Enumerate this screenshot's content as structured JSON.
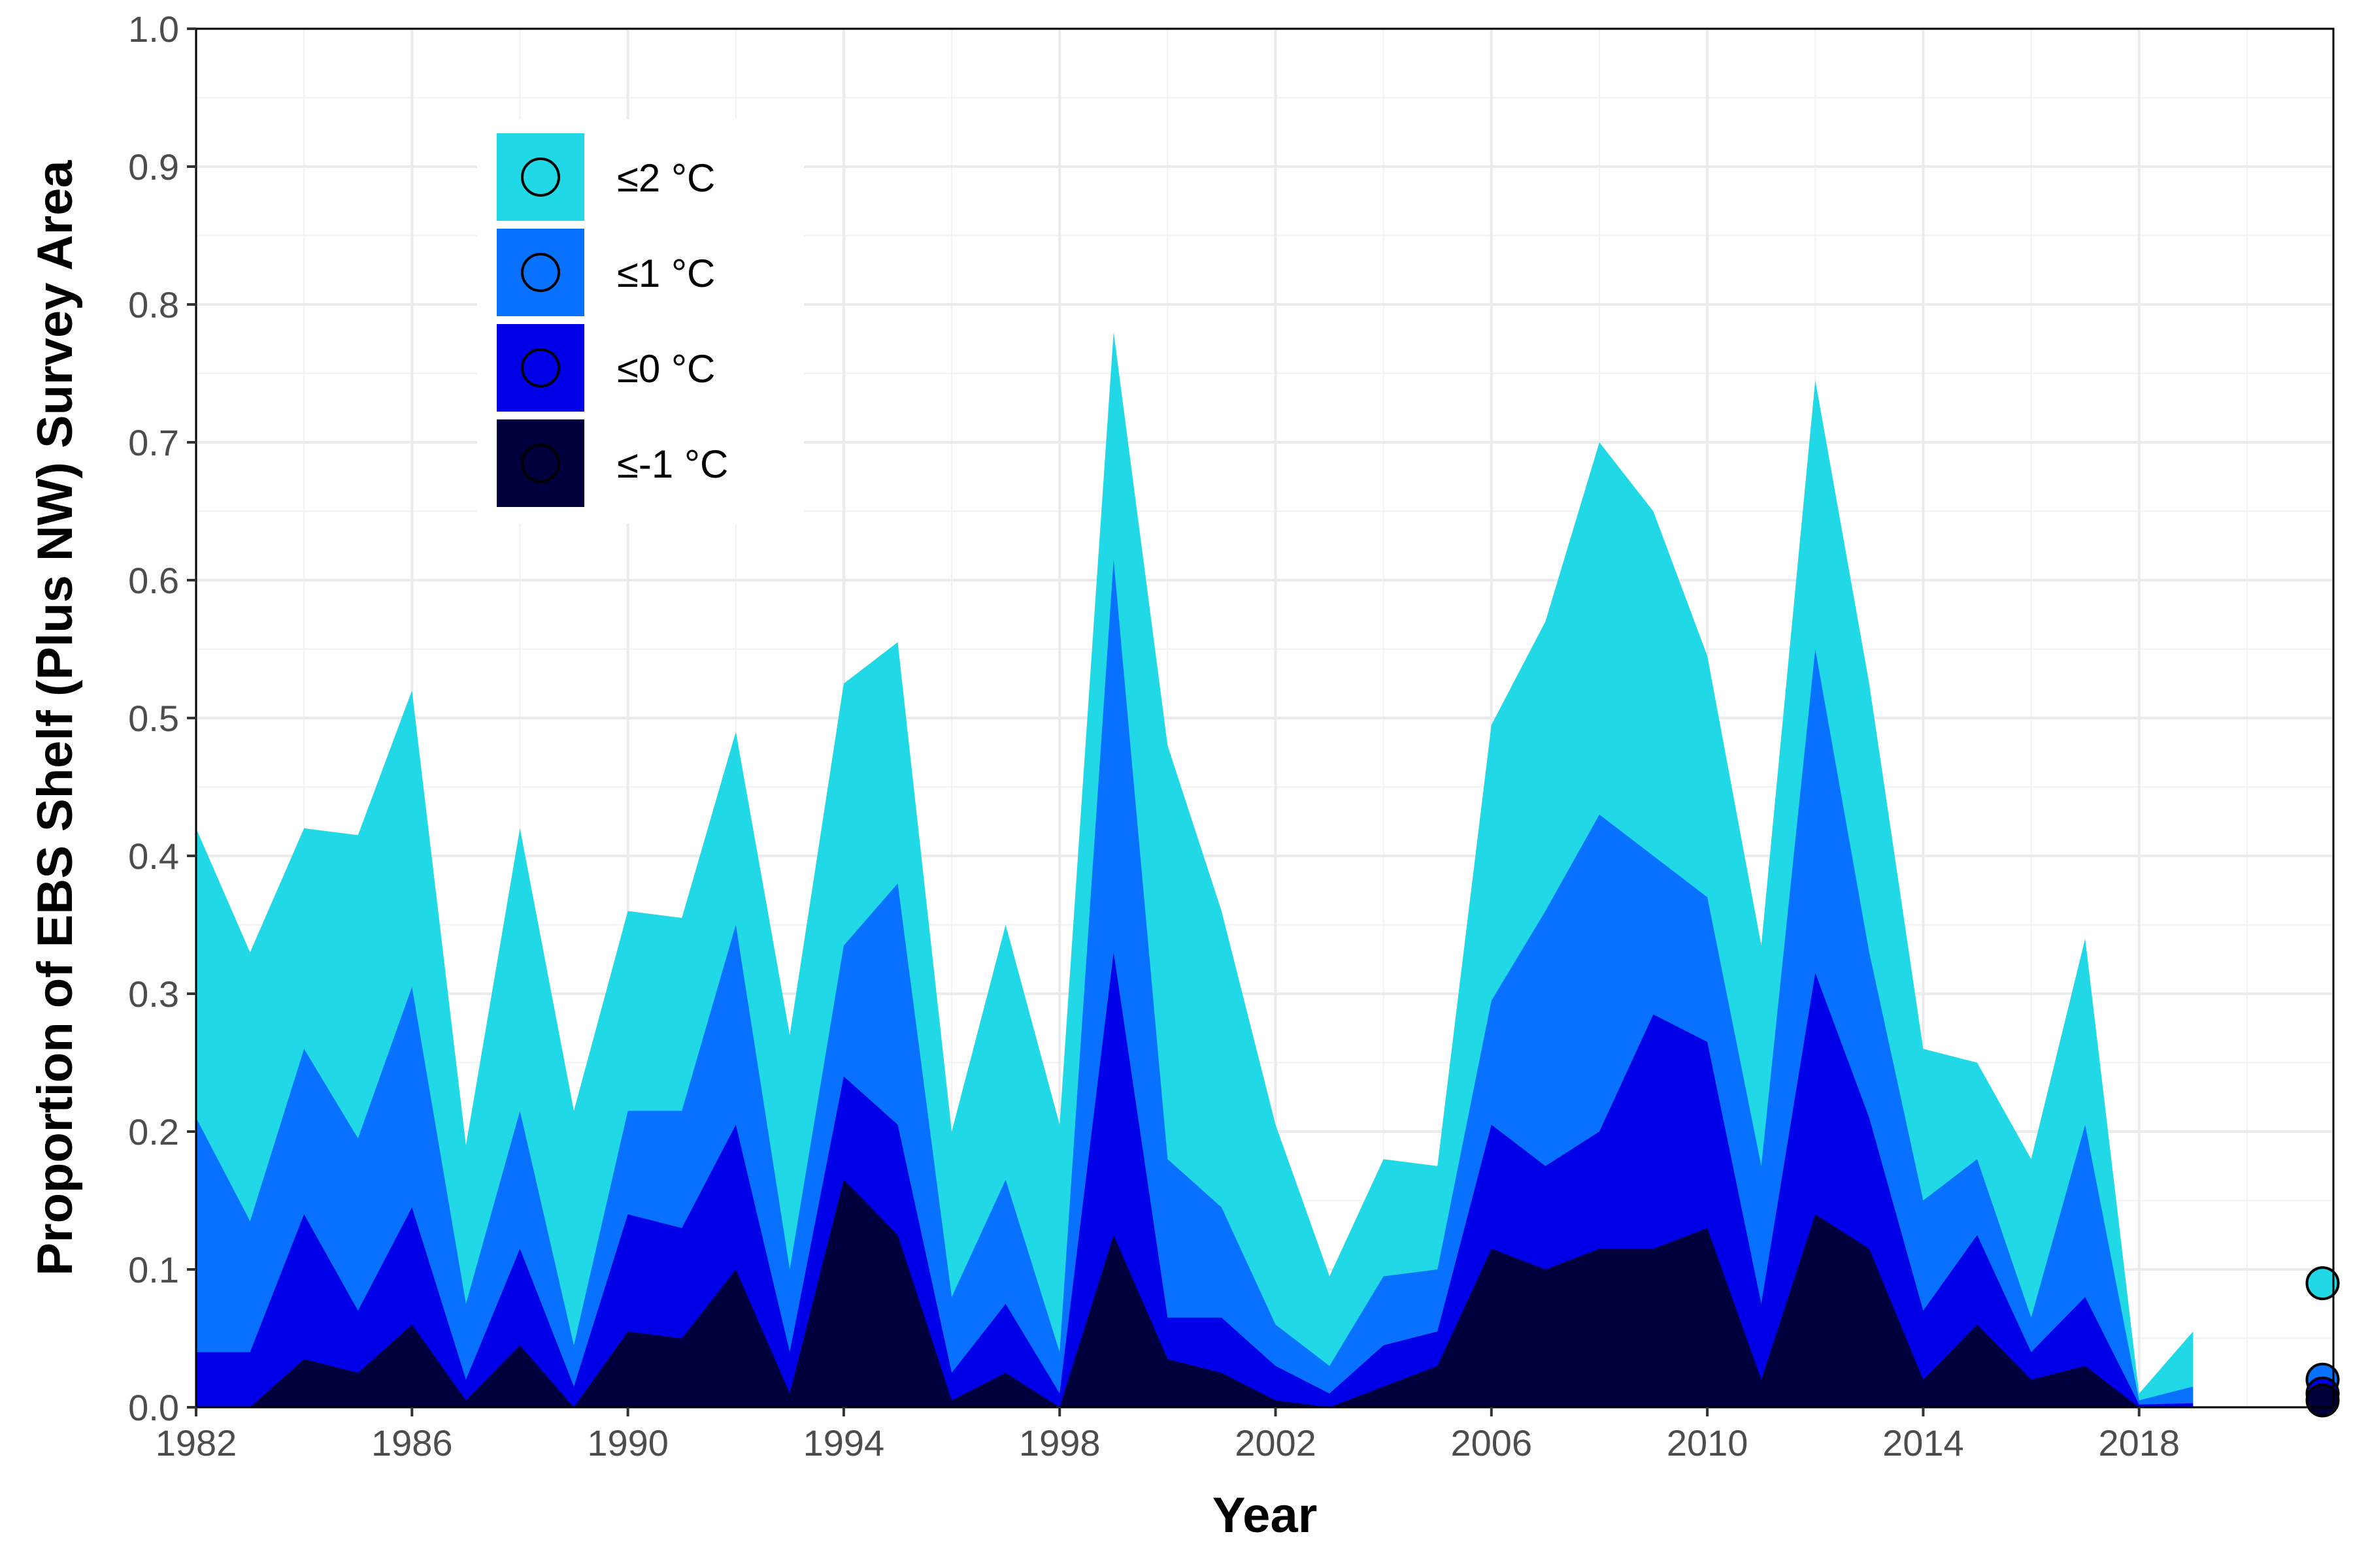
{
  "chart_data": {
    "type": "area",
    "xlabel": "Year",
    "ylabel": "Proportion of EBS Shelf (Plus NW) Survey Area",
    "xlim": [
      1982,
      2021.6
    ],
    "ylim": [
      0,
      1
    ],
    "x_ticks": [
      1982,
      1986,
      1990,
      1994,
      1998,
      2002,
      2006,
      2010,
      2014,
      2018
    ],
    "y_ticks": [
      "0.0",
      "0.1",
      "0.2",
      "0.3",
      "0.4",
      "0.5",
      "0.6",
      "0.7",
      "0.8",
      "0.9",
      "1.0"
    ],
    "grid": true,
    "legend_position": "top-left",
    "x": [
      1982,
      1983,
      1984,
      1985,
      1986,
      1987,
      1988,
      1989,
      1990,
      1991,
      1992,
      1993,
      1994,
      1995,
      1996,
      1997,
      1998,
      1999,
      2000,
      2001,
      2002,
      2003,
      2004,
      2005,
      2006,
      2007,
      2008,
      2009,
      2010,
      2011,
      2012,
      2013,
      2014,
      2015,
      2016,
      2017,
      2018,
      2019
    ],
    "series": [
      {
        "name": "≤2 °C",
        "color": "#21D9E6",
        "values": [
          0.42,
          0.33,
          0.42,
          0.415,
          0.52,
          0.19,
          0.42,
          0.215,
          0.36,
          0.355,
          0.49,
          0.27,
          0.525,
          0.555,
          0.2,
          0.35,
          0.205,
          0.78,
          0.48,
          0.36,
          0.205,
          0.095,
          0.18,
          0.175,
          0.495,
          0.57,
          0.7,
          0.65,
          0.545,
          0.335,
          0.745,
          0.525,
          0.26,
          0.25,
          0.18,
          0.34,
          0.01,
          0.055
        ]
      },
      {
        "name": "≤1 °C",
        "color": "#0871FF",
        "values": [
          0.21,
          0.135,
          0.26,
          0.195,
          0.305,
          0.075,
          0.215,
          0.045,
          0.215,
          0.215,
          0.35,
          0.1,
          0.335,
          0.38,
          0.08,
          0.165,
          0.04,
          0.615,
          0.18,
          0.145,
          0.06,
          0.03,
          0.095,
          0.1,
          0.295,
          0.36,
          0.43,
          0.4,
          0.37,
          0.175,
          0.55,
          0.33,
          0.15,
          0.18,
          0.065,
          0.205,
          0.005,
          0.015
        ]
      },
      {
        "name": "≤0 °C",
        "color": "#0000E8",
        "values": [
          0.04,
          0.04,
          0.14,
          0.07,
          0.145,
          0.02,
          0.115,
          0.015,
          0.14,
          0.13,
          0.205,
          0.04,
          0.24,
          0.205,
          0.025,
          0.075,
          0.01,
          0.33,
          0.065,
          0.065,
          0.03,
          0.01,
          0.045,
          0.055,
          0.205,
          0.175,
          0.2,
          0.285,
          0.265,
          0.075,
          0.315,
          0.21,
          0.07,
          0.125,
          0.04,
          0.08,
          0.002,
          0.003
        ]
      },
      {
        "name": "≤-1 °C",
        "color": "#00003D",
        "values": [
          0.0,
          0.0,
          0.035,
          0.025,
          0.06,
          0.005,
          0.045,
          0.0,
          0.055,
          0.05,
          0.1,
          0.01,
          0.165,
          0.125,
          0.005,
          0.025,
          0.0,
          0.125,
          0.035,
          0.025,
          0.005,
          0.0,
          0.015,
          0.03,
          0.115,
          0.1,
          0.115,
          0.115,
          0.13,
          0.02,
          0.14,
          0.115,
          0.02,
          0.06,
          0.02,
          0.03,
          0.0,
          0.0
        ]
      }
    ],
    "points": [
      {
        "x": 2021.4,
        "y": 0.09,
        "series": "≤2 °C"
      },
      {
        "x": 2021.4,
        "y": 0.02,
        "series": "≤1 °C"
      },
      {
        "x": 2021.4,
        "y": 0.01,
        "series": "≤0 °C"
      },
      {
        "x": 2021.4,
        "y": 0.005,
        "series": "≤-1 °C"
      }
    ]
  }
}
